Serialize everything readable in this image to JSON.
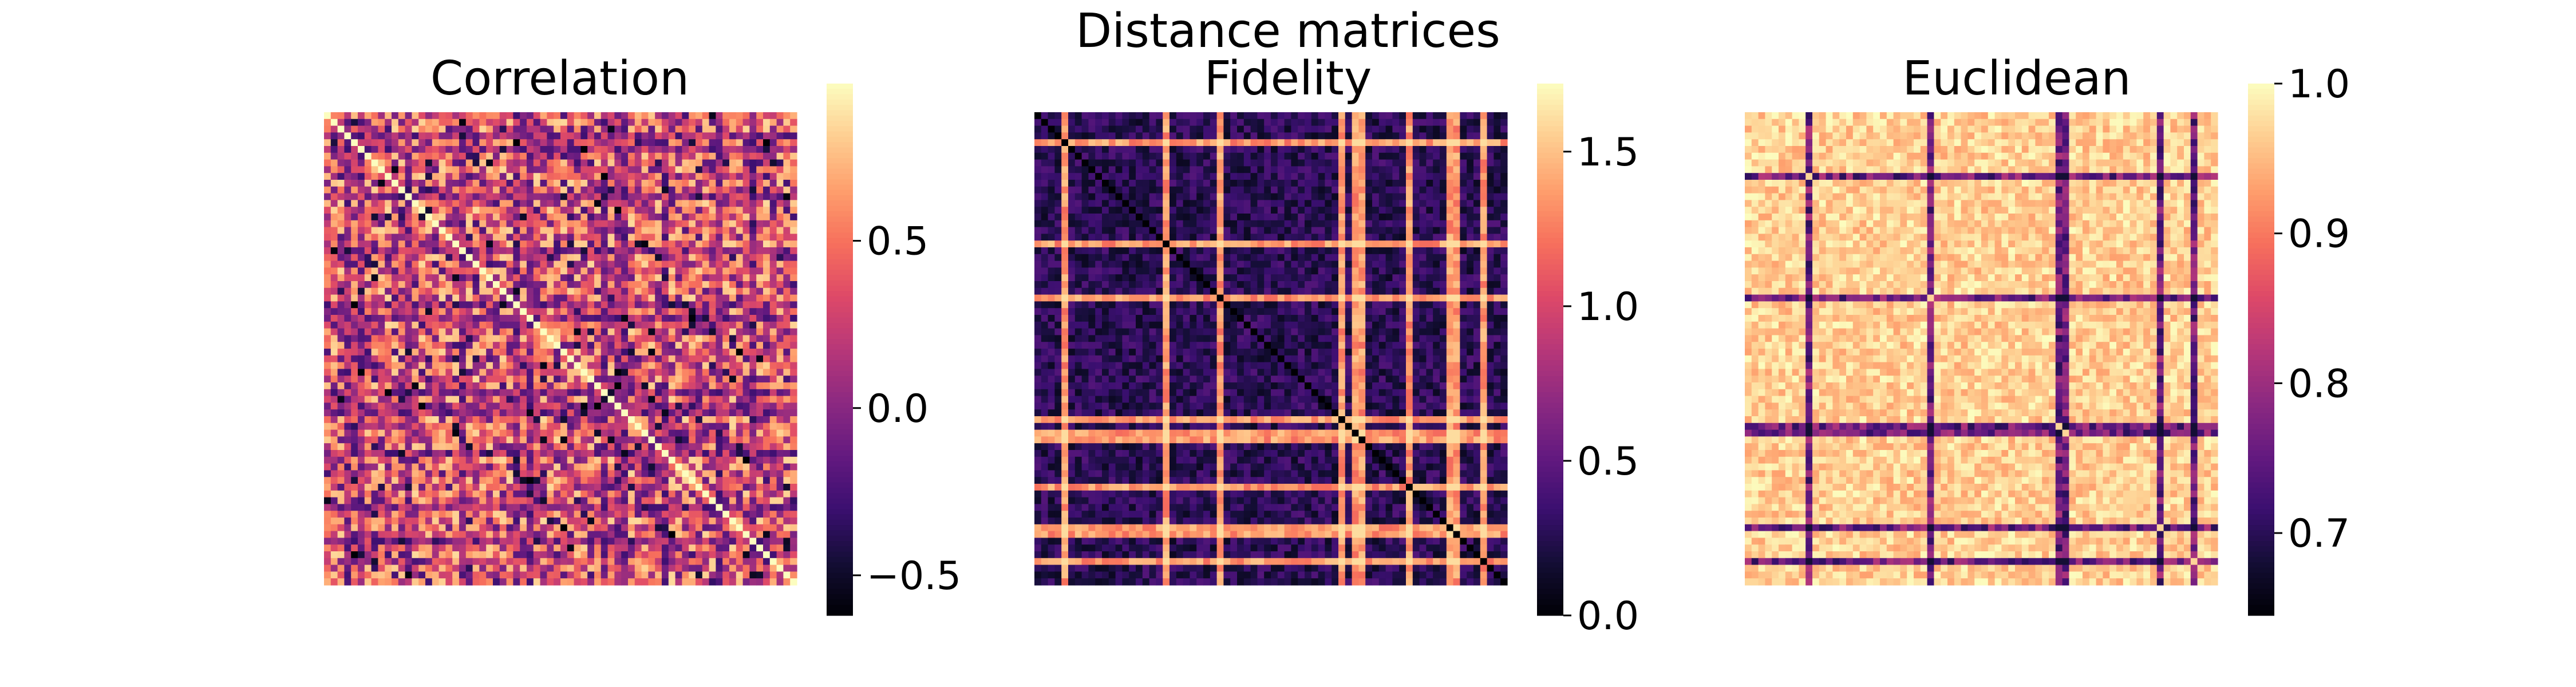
{
  "chart_data": {
    "type": "heatmap",
    "suptitle": "Distance matrices",
    "colormap": "magma",
    "matrix_size": 70,
    "panels": [
      {
        "title": "Correlation",
        "vmin": -0.62,
        "vmax": 0.97,
        "colorbar_ticks": [
          -0.5,
          0.0,
          0.5
        ],
        "colorbar_tick_labels": [
          "−0.5",
          "0.0",
          "0.5"
        ],
        "diagonal_value": 0.97,
        "background_range": [
          -0.3,
          0.85
        ],
        "outlier_rows": [
          3,
          5,
          12,
          20,
          28,
          30,
          41,
          43,
          44,
          50,
          58,
          63
        ],
        "outlier_value": 0.05,
        "structure": "noisy"
      },
      {
        "title": "Fidelity",
        "vmin": 0.0,
        "vmax": 1.72,
        "colorbar_ticks": [
          0.0,
          0.5,
          1.0,
          1.5
        ],
        "colorbar_tick_labels": [
          "0.0",
          "0.5",
          "1.0",
          "1.5"
        ],
        "diagonal_value": 0.0,
        "background_range": [
          0.1,
          0.45
        ],
        "outlier_rows": [
          4,
          19,
          27,
          45,
          47,
          48,
          55,
          61,
          62,
          66
        ],
        "outlier_value": 1.35,
        "structure": "low-with-outlier-lines"
      },
      {
        "title": "Euclidean",
        "vmin": 0.645,
        "vmax": 1.0,
        "colorbar_ticks": [
          0.7,
          0.8,
          0.9,
          1.0
        ],
        "colorbar_tick_labels": [
          "0.7",
          "0.8",
          "0.9",
          "1.0"
        ],
        "diagonal_value": 0.97,
        "background_range": [
          0.93,
          1.0
        ],
        "outlier_rows": [
          9,
          27,
          46,
          47,
          61,
          66
        ],
        "outlier_value": 0.76,
        "structure": "high-with-outlier-lines"
      }
    ]
  }
}
